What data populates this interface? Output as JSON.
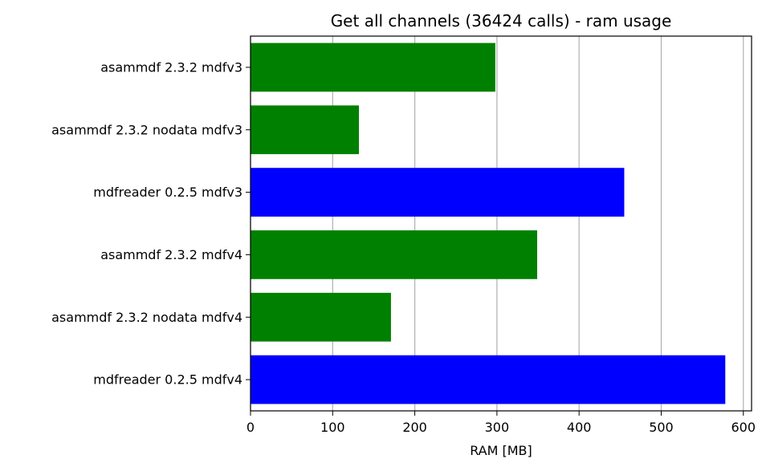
{
  "chart_data": {
    "type": "bar",
    "orientation": "horizontal",
    "title": "Get all channels (36424 calls) - ram usage",
    "xlabel": "RAM [MB]",
    "ylabel": "",
    "xlim": [
      0,
      610
    ],
    "xticks": [
      0,
      100,
      200,
      300,
      400,
      500,
      600
    ],
    "grid": "x",
    "legend": "none",
    "categories": [
      "asammdf 2.3.2 mdfv3",
      "asammdf 2.3.2 nodata mdfv3",
      "mdfreader 0.2.5 mdfv3",
      "asammdf 2.3.2 mdfv4",
      "asammdf 2.3.2 nodata mdfv4",
      "mdfreader 0.2.5 mdfv4"
    ],
    "values": [
      298,
      132,
      455,
      349,
      171,
      578
    ],
    "colors": [
      "#008000",
      "#008000",
      "#0000ff",
      "#008000",
      "#008000",
      "#0000ff"
    ]
  }
}
